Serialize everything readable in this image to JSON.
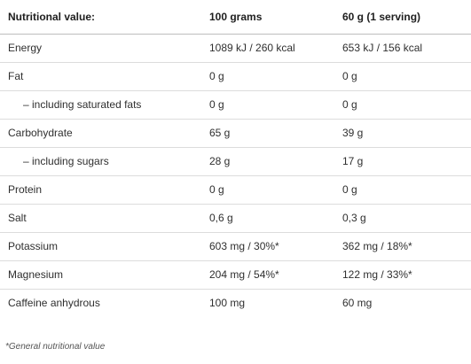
{
  "table": {
    "headers": [
      "Nutritional value:",
      "100 grams",
      "60 g (1 serving)"
    ],
    "rows": [
      {
        "name": "Energy",
        "indented": false,
        "per100": "1089 kJ / 260 kcal",
        "perServing": "653 kJ / 156 kcal"
      },
      {
        "name": "Fat",
        "indented": false,
        "per100": "0 g",
        "perServing": "0 g"
      },
      {
        "name": "– including saturated fats",
        "indented": true,
        "per100": "0 g",
        "perServing": "0 g"
      },
      {
        "name": "Carbohydrate",
        "indented": false,
        "per100": "65 g",
        "perServing": "39 g"
      },
      {
        "name": "– including sugars",
        "indented": true,
        "per100": "28 g",
        "perServing": "17 g"
      },
      {
        "name": "Protein",
        "indented": false,
        "per100": "0 g",
        "perServing": "0 g"
      },
      {
        "name": "Salt",
        "indented": false,
        "per100": "0,6 g",
        "perServing": "0,3 g"
      },
      {
        "name": "Potassium",
        "indented": false,
        "per100": "603 mg / 30%*",
        "perServing": "362 mg / 18%*"
      },
      {
        "name": "Magnesium",
        "indented": false,
        "per100": "204 mg / 54%*",
        "perServing": "122 mg / 33%*"
      },
      {
        "name": "Caffeine anhydrous",
        "indented": false,
        "per100": "100 mg",
        "perServing": "60 mg"
      }
    ]
  },
  "footnote": "*General nutritional value"
}
